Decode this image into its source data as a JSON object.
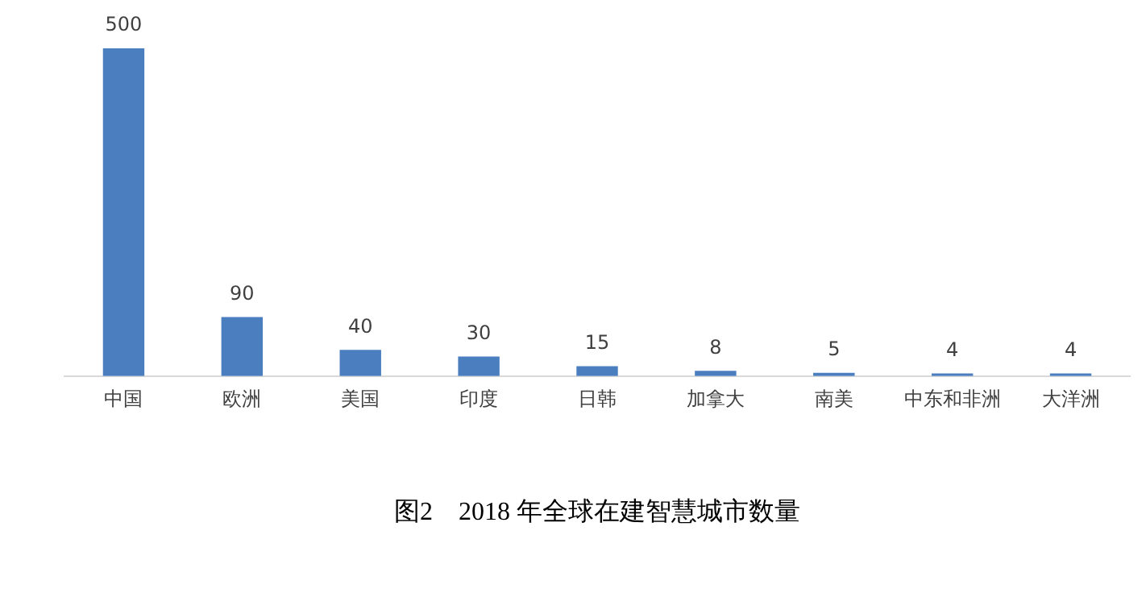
{
  "chart_data": {
    "type": "bar",
    "title": "图2　2018 年全球在建智慧城市数量",
    "categories": [
      "中国",
      "欧洲",
      "美国",
      "印度",
      "日韩",
      "加拿大",
      "南美",
      "中东和非洲",
      "大洋洲"
    ],
    "values": [
      500,
      90,
      40,
      30,
      15,
      8,
      5,
      4,
      4
    ],
    "color": "#4a7ebf",
    "ylim": [
      0,
      500
    ],
    "tick_labels": "x",
    "data_labels": true,
    "grid": false,
    "legend": false
  }
}
